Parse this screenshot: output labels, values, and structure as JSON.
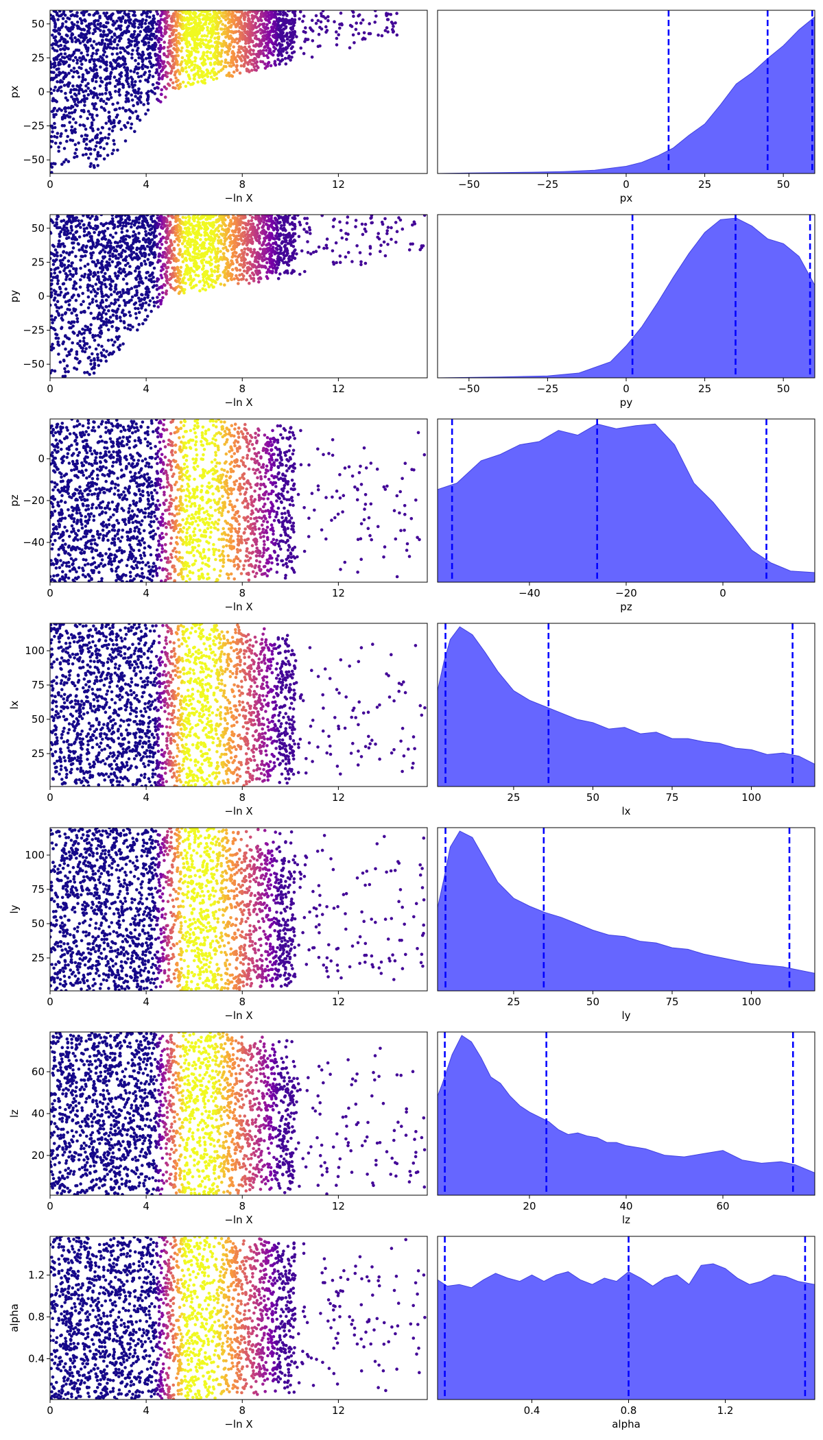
{
  "chart_data": [
    {
      "param": "px",
      "trace": {
        "type": "scatter",
        "xlabel": "−ln X",
        "ylabel": "px",
        "xlim": [
          0,
          15.7
        ],
        "ylim": [
          -60,
          60
        ],
        "xticks": [
          0,
          4,
          8,
          12
        ],
        "yticks": [
          50,
          25,
          0,
          -25,
          -50
        ],
        "lower_start": -60,
        "lower_end": 0,
        "upper_start": 48,
        "upper_end": 60,
        "max_x": 14.5
      },
      "posterior": {
        "type": "area",
        "xlabel": "px",
        "xlim": [
          -60,
          60
        ],
        "xticks": [
          -50,
          -25,
          0,
          25,
          50
        ],
        "quantiles": [
          13.5,
          45.0,
          59.2
        ],
        "x": [
          -60,
          -50,
          -40,
          -30,
          -20,
          -10,
          0,
          5,
          10,
          15,
          20,
          25,
          30,
          35,
          40,
          45,
          50,
          55,
          60
        ],
        "density": [
          0.0,
          0.003,
          0.005,
          0.008,
          0.012,
          0.02,
          0.045,
          0.07,
          0.11,
          0.16,
          0.24,
          0.31,
          0.43,
          0.56,
          0.63,
          0.72,
          0.8,
          0.9,
          0.98
        ]
      }
    },
    {
      "param": "py",
      "trace": {
        "type": "scatter",
        "xlabel": "−ln X",
        "ylabel": "py",
        "xlim": [
          0,
          15.7
        ],
        "ylim": [
          -60,
          60
        ],
        "xticks": [
          0,
          4,
          8,
          12
        ],
        "yticks": [
          50,
          25,
          0,
          -25,
          -50
        ],
        "lower_start": -60,
        "lower_end": 0,
        "upper_start": 35,
        "upper_end": 42,
        "max_x": 15.6
      },
      "posterior": {
        "type": "area",
        "xlabel": "py",
        "xlim": [
          -60,
          60
        ],
        "xticks": [
          -50,
          -25,
          0,
          25,
          50
        ],
        "quantiles": [
          2.0,
          34.8,
          58.5
        ],
        "x": [
          -60,
          -40,
          -25,
          -15,
          -5,
          0,
          5,
          10,
          15,
          20,
          25,
          30,
          35,
          40,
          45,
          50,
          55,
          60
        ],
        "density": [
          0.0,
          0.005,
          0.012,
          0.03,
          0.1,
          0.2,
          0.32,
          0.47,
          0.63,
          0.78,
          0.91,
          0.99,
          1.0,
          0.95,
          0.87,
          0.84,
          0.76,
          0.58
        ]
      }
    },
    {
      "param": "pz",
      "trace": {
        "type": "scatter",
        "xlabel": "−ln X",
        "ylabel": "pz",
        "xlim": [
          0,
          15.7
        ],
        "ylim": [
          -59,
          19
        ],
        "xticks": [
          0,
          4,
          8,
          12
        ],
        "yticks": [
          0,
          -20,
          -40
        ],
        "lower_start": -59,
        "lower_end": -59,
        "upper_start": 19,
        "upper_end": 19,
        "focus": -22,
        "max_x": 15.6
      },
      "posterior": {
        "type": "area",
        "xlabel": "pz",
        "xlim": [
          -59,
          19
        ],
        "xticks": [
          -40,
          -20,
          0
        ],
        "quantiles": [
          -56,
          -26,
          9
        ],
        "x": [
          -59,
          -55,
          -50,
          -46,
          -42,
          -38,
          -34,
          -30,
          -26,
          -22,
          -18,
          -14,
          -10,
          -6,
          -2,
          2,
          6,
          10,
          14,
          19
        ],
        "density": [
          0.58,
          0.62,
          0.76,
          0.8,
          0.86,
          0.88,
          0.95,
          0.92,
          0.99,
          0.96,
          0.98,
          0.99,
          0.86,
          0.62,
          0.5,
          0.35,
          0.2,
          0.12,
          0.07,
          0.06
        ]
      }
    },
    {
      "param": "lx",
      "trace": {
        "type": "scatter",
        "xlabel": "−ln X",
        "ylabel": "lx",
        "xlim": [
          0,
          15.7
        ],
        "ylim": [
          1,
          120
        ],
        "xticks": [
          0,
          4,
          8,
          12
        ],
        "yticks": [
          100,
          75,
          50,
          25
        ],
        "lower_start": 1,
        "lower_end": 1,
        "upper_start": 120,
        "upper_end": 120,
        "focus": 30,
        "max_x": 15.6
      },
      "posterior": {
        "type": "area",
        "xlabel": "lx",
        "xlim": [
          1,
          120
        ],
        "xticks": [
          25,
          50,
          75,
          100
        ],
        "quantiles": [
          3.5,
          36,
          113
        ],
        "x": [
          1,
          3,
          5,
          8,
          12,
          16,
          20,
          25,
          30,
          35,
          40,
          45,
          50,
          55,
          60,
          65,
          70,
          75,
          80,
          85,
          90,
          95,
          100,
          105,
          110,
          115,
          120
        ],
        "density": [
          0.6,
          0.78,
          0.92,
          1.0,
          0.95,
          0.84,
          0.72,
          0.6,
          0.54,
          0.5,
          0.46,
          0.42,
          0.4,
          0.36,
          0.37,
          0.33,
          0.34,
          0.3,
          0.3,
          0.28,
          0.27,
          0.24,
          0.23,
          0.2,
          0.21,
          0.19,
          0.14
        ]
      }
    },
    {
      "param": "ly",
      "trace": {
        "type": "scatter",
        "xlabel": "−ln X",
        "ylabel": "ly",
        "xlim": [
          0,
          15.7
        ],
        "ylim": [
          1,
          120
        ],
        "xticks": [
          0,
          4,
          8,
          12
        ],
        "yticks": [
          100,
          75,
          50,
          25
        ],
        "lower_start": 1,
        "lower_end": 1,
        "upper_start": 120,
        "upper_end": 120,
        "focus": 30,
        "max_x": 15.6
      },
      "posterior": {
        "type": "area",
        "xlabel": "ly",
        "xlim": [
          1,
          120
        ],
        "xticks": [
          25,
          50,
          75,
          100
        ],
        "quantiles": [
          3.5,
          34.5,
          112
        ],
        "x": [
          1,
          3,
          5,
          8,
          12,
          16,
          20,
          25,
          30,
          35,
          40,
          45,
          50,
          55,
          60,
          65,
          70,
          75,
          80,
          85,
          90,
          95,
          100,
          105,
          110,
          115,
          120
        ],
        "density": [
          0.52,
          0.7,
          0.9,
          1.0,
          0.96,
          0.82,
          0.68,
          0.58,
          0.53,
          0.49,
          0.46,
          0.42,
          0.38,
          0.35,
          0.34,
          0.31,
          0.3,
          0.27,
          0.26,
          0.23,
          0.21,
          0.19,
          0.17,
          0.16,
          0.15,
          0.13,
          0.11
        ]
      }
    },
    {
      "param": "lz",
      "trace": {
        "type": "scatter",
        "xlabel": "−ln X",
        "ylabel": "lz",
        "xlim": [
          0,
          15.7
        ],
        "ylim": [
          1,
          79
        ],
        "xticks": [
          0,
          4,
          8,
          12
        ],
        "yticks": [
          60,
          40,
          20
        ],
        "lower_start": 1,
        "lower_end": 1,
        "upper_start": 79,
        "upper_end": 79,
        "focus": 20,
        "max_x": 15.6
      },
      "posterior": {
        "type": "area",
        "xlabel": "lz",
        "xlim": [
          1,
          79
        ],
        "xticks": [
          20,
          40,
          60
        ],
        "quantiles": [
          2.5,
          23.5,
          74.5
        ],
        "x": [
          1,
          2,
          4,
          6,
          8,
          10,
          12,
          14,
          16,
          18,
          20,
          22,
          24,
          26,
          28,
          30,
          32,
          34,
          36,
          38,
          40,
          44,
          48,
          52,
          56,
          60,
          64,
          68,
          72,
          75,
          79
        ],
        "density": [
          0.62,
          0.7,
          0.88,
          1.0,
          0.96,
          0.86,
          0.74,
          0.7,
          0.62,
          0.56,
          0.52,
          0.49,
          0.46,
          0.41,
          0.38,
          0.39,
          0.37,
          0.36,
          0.33,
          0.33,
          0.31,
          0.29,
          0.25,
          0.24,
          0.26,
          0.28,
          0.22,
          0.2,
          0.21,
          0.19,
          0.14
        ]
      }
    },
    {
      "param": "alpha",
      "trace": {
        "type": "scatter",
        "xlabel": "−ln X",
        "ylabel": "alpha",
        "xlim": [
          0,
          15.7
        ],
        "ylim": [
          0.01,
          1.57
        ],
        "xticks": [
          0,
          4,
          8,
          12
        ],
        "yticks": [
          1.2,
          0.8,
          0.4
        ],
        "lower_start": 0.01,
        "lower_end": 0.01,
        "upper_start": 1.57,
        "upper_end": 1.57,
        "focus": 1.0,
        "max_x": 15.6
      },
      "posterior": {
        "type": "area",
        "xlabel": "alpha",
        "xlim": [
          0.01,
          1.57
        ],
        "xticks": [
          0.4,
          0.8,
          1.2
        ],
        "quantiles": [
          0.04,
          0.8,
          1.53
        ],
        "x": [
          0.01,
          0.05,
          0.1,
          0.15,
          0.2,
          0.25,
          0.3,
          0.35,
          0.4,
          0.45,
          0.5,
          0.55,
          0.6,
          0.65,
          0.7,
          0.75,
          0.8,
          0.85,
          0.9,
          0.95,
          1.0,
          1.05,
          1.1,
          1.15,
          1.2,
          1.25,
          1.3,
          1.35,
          1.4,
          1.45,
          1.5,
          1.57
        ],
        "density": [
          0.75,
          0.71,
          0.72,
          0.7,
          0.75,
          0.79,
          0.76,
          0.74,
          0.78,
          0.74,
          0.78,
          0.8,
          0.75,
          0.72,
          0.76,
          0.74,
          0.8,
          0.76,
          0.71,
          0.76,
          0.78,
          0.72,
          0.84,
          0.85,
          0.82,
          0.76,
          0.72,
          0.74,
          0.78,
          0.77,
          0.74,
          0.72
        ]
      }
    }
  ]
}
